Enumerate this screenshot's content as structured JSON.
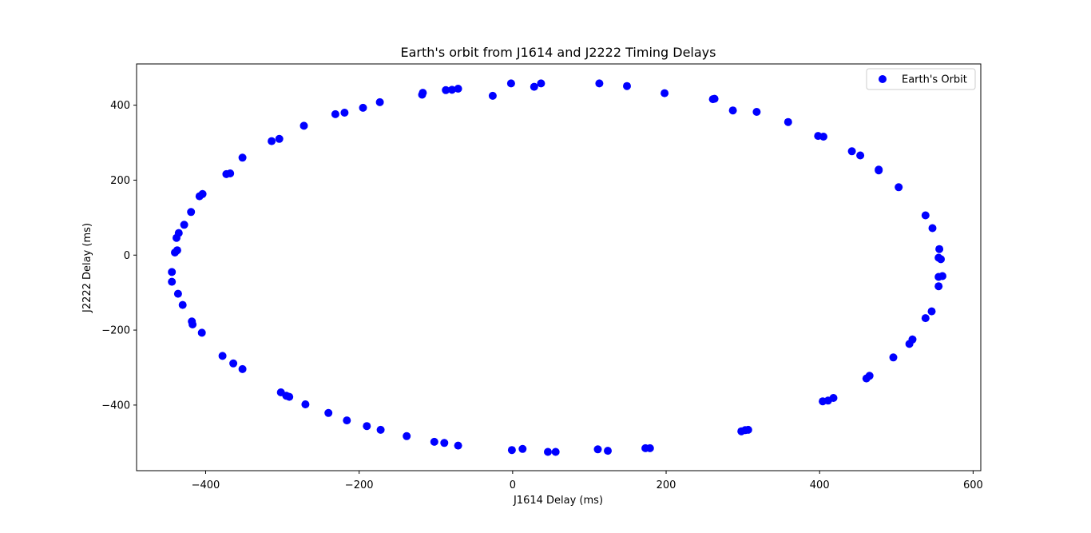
{
  "chart_data": {
    "type": "scatter",
    "title": "Earth's orbit from J1614 and J2222 Timing Delays",
    "xlabel": "J1614 Delay (ms)",
    "ylabel": "J2222 Delay (ms)",
    "xlim": [
      -490,
      610
    ],
    "ylim": [
      -575,
      510
    ],
    "xticks": [
      -400,
      -200,
      0,
      200,
      400,
      600
    ],
    "xtick_labels": [
      "−400",
      "−200",
      "0",
      "200",
      "400",
      "600"
    ],
    "yticks": [
      -400,
      -200,
      0,
      200,
      400
    ],
    "ytick_labels": [
      "−400",
      "−200",
      "0",
      "200",
      "400"
    ],
    "grid": false,
    "legend": {
      "position": "top-right",
      "entries": [
        "Earth's Orbit"
      ]
    },
    "series": [
      {
        "name": "Earth's Orbit",
        "color": "#0000ff",
        "marker": "circle",
        "points": [
          [
            -2,
            458
          ],
          [
            37,
            458
          ],
          [
            28,
            449
          ],
          [
            -26,
            425
          ],
          [
            -71,
            444
          ],
          [
            -79,
            441
          ],
          [
            -87,
            440
          ],
          [
            -117,
            433
          ],
          [
            -118,
            428
          ],
          [
            -173,
            408
          ],
          [
            -195,
            393
          ],
          [
            -219,
            380
          ],
          [
            -231,
            376
          ],
          [
            -272,
            345
          ],
          [
            -304,
            310
          ],
          [
            -314,
            304
          ],
          [
            -352,
            260
          ],
          [
            -368,
            218
          ],
          [
            -373,
            216
          ],
          [
            -404,
            163
          ],
          [
            -408,
            157
          ],
          [
            -419,
            115
          ],
          [
            -428,
            81
          ],
          [
            -435,
            59
          ],
          [
            -438,
            46
          ],
          [
            -437,
            13
          ],
          [
            -440,
            7
          ],
          [
            -444,
            -45
          ],
          [
            -444,
            -71
          ],
          [
            -436,
            -103
          ],
          [
            -430,
            -133
          ],
          [
            -418,
            -177
          ],
          [
            -417,
            -185
          ],
          [
            -405,
            -207
          ],
          [
            -378,
            -269
          ],
          [
            -364,
            -289
          ],
          [
            -352,
            -304
          ],
          [
            -302,
            -366
          ],
          [
            -295,
            -375
          ],
          [
            -291,
            -378
          ],
          [
            -270,
            -398
          ],
          [
            -240,
            -421
          ],
          [
            -216,
            -441
          ],
          [
            -190,
            -456
          ],
          [
            -172,
            -466
          ],
          [
            -138,
            -483
          ],
          [
            -102,
            -498
          ],
          [
            -89,
            -501
          ],
          [
            -71,
            -508
          ],
          [
            -1,
            -520
          ],
          [
            13,
            -517
          ],
          [
            46,
            -525
          ],
          [
            56,
            -525
          ],
          [
            111,
            -518
          ],
          [
            124,
            -522
          ],
          [
            173,
            -515
          ],
          [
            179,
            -515
          ],
          [
            298,
            -470
          ],
          [
            303,
            -467
          ],
          [
            307,
            -466
          ],
          [
            404,
            -390
          ],
          [
            411,
            -388
          ],
          [
            418,
            -381
          ],
          [
            461,
            -329
          ],
          [
            465,
            -322
          ],
          [
            496,
            -273
          ],
          [
            517,
            -237
          ],
          [
            521,
            -225
          ],
          [
            538,
            -168
          ],
          [
            546,
            -150
          ],
          [
            555,
            -83
          ],
          [
            555,
            -58
          ],
          [
            560,
            -56
          ],
          [
            558,
            -11
          ],
          [
            555,
            -7
          ],
          [
            556,
            16
          ],
          [
            547,
            72
          ],
          [
            538,
            106
          ],
          [
            503,
            181
          ],
          [
            477,
            226
          ],
          [
            477,
            228
          ],
          [
            453,
            266
          ],
          [
            442,
            277
          ],
          [
            405,
            316
          ],
          [
            398,
            318
          ],
          [
            359,
            355
          ],
          [
            318,
            382
          ],
          [
            287,
            386
          ],
          [
            263,
            417
          ],
          [
            261,
            416
          ],
          [
            198,
            432
          ],
          [
            149,
            451
          ],
          [
            113,
            458
          ]
        ]
      }
    ]
  }
}
